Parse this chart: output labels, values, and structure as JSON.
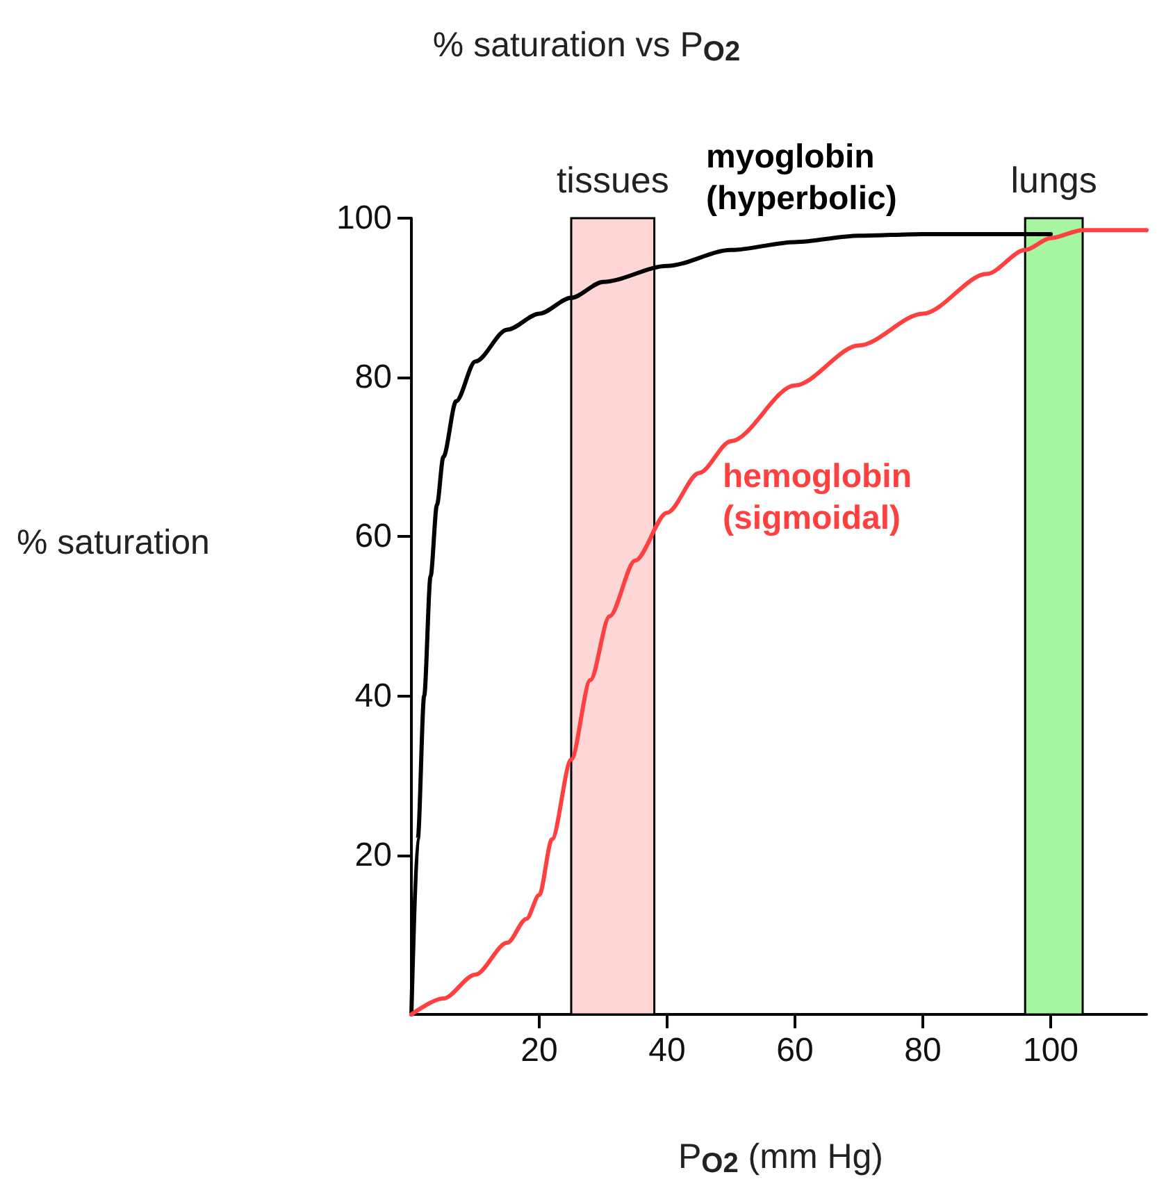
{
  "chart_data": {
    "type": "line",
    "title": "% saturation vs P$_{O2}$",
    "xlabel": "P$_{O2}$ (mm Hg)",
    "ylabel": "% saturation",
    "xlim": [
      0,
      115
    ],
    "ylim": [
      0,
      100
    ],
    "xticks": [
      20,
      40,
      60,
      80,
      100
    ],
    "yticks": [
      20,
      40,
      60,
      80,
      100
    ],
    "line_style": "solid",
    "series": [
      {
        "name": "myoglobin\n(hyperbolic)",
        "color": "#000000",
        "x": [
          0,
          1,
          2,
          3,
          4,
          5,
          7,
          10,
          15,
          20,
          25,
          30,
          40,
          50,
          60,
          70,
          80,
          90,
          100
        ],
        "values": [
          0,
          22,
          40,
          55,
          64,
          70,
          77,
          82,
          86,
          88,
          90,
          92,
          94,
          96,
          97,
          97.8,
          98,
          98,
          98
        ]
      },
      {
        "name": "hemoglobin\n(sigmoidal)",
        "color": "#ff4040",
        "x": [
          0,
          5,
          10,
          15,
          18,
          20,
          22,
          25,
          28,
          31,
          35,
          40,
          45,
          50,
          60,
          70,
          80,
          90,
          96,
          100,
          105,
          115
        ],
        "values": [
          0,
          2,
          5,
          9,
          12,
          15,
          22,
          32,
          42,
          50,
          57,
          63,
          68,
          72,
          79,
          84,
          88,
          93,
          96,
          97.5,
          98.5,
          98.5
        ]
      }
    ],
    "bands": [
      {
        "axis": "x",
        "from": 25,
        "to": 38,
        "label": "tissues",
        "color": "#ffd6d6"
      },
      {
        "axis": "x",
        "from": 96,
        "to": 105,
        "label": "lungs",
        "color": "#a6f5a0"
      }
    ]
  }
}
